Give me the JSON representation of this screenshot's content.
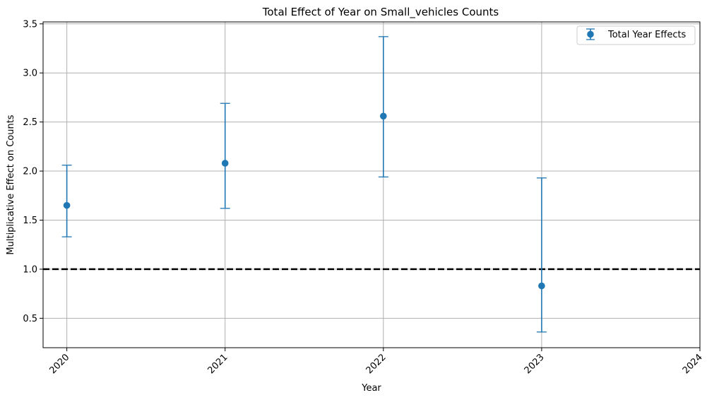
{
  "chart_data": {
    "type": "scatter",
    "title": "Total Effect of Year on Small_vehicles Counts",
    "xlabel": "Year",
    "ylabel": "Multiplicative Effect on Counts",
    "xlim": [
      2019.85,
      2024
    ],
    "ylim": [
      0.2,
      3.52
    ],
    "x_ticks": [
      2020,
      2021,
      2022,
      2023,
      2024
    ],
    "x_tick_labels": [
      "2020",
      "2021",
      "2022",
      "2023",
      "2024"
    ],
    "y_ticks": [
      0.5,
      1.0,
      1.5,
      2.0,
      2.5,
      3.0,
      3.5
    ],
    "y_tick_labels": [
      "0.5",
      "1.0",
      "1.5",
      "2.0",
      "2.5",
      "3.0",
      "3.5"
    ],
    "grid": true,
    "legend_position": "top-right",
    "series": [
      {
        "name": "Total Year Effects",
        "color": "#1f77b4",
        "x": [
          2020,
          2021,
          2022,
          2023
        ],
        "y": [
          1.65,
          2.08,
          2.56,
          0.83
        ],
        "lower": [
          1.33,
          1.62,
          1.94,
          0.36
        ],
        "upper": [
          2.06,
          2.69,
          3.37,
          1.93
        ]
      }
    ],
    "reference_line": {
      "y": 1.0,
      "color": "#000000",
      "style": "dashed"
    }
  }
}
